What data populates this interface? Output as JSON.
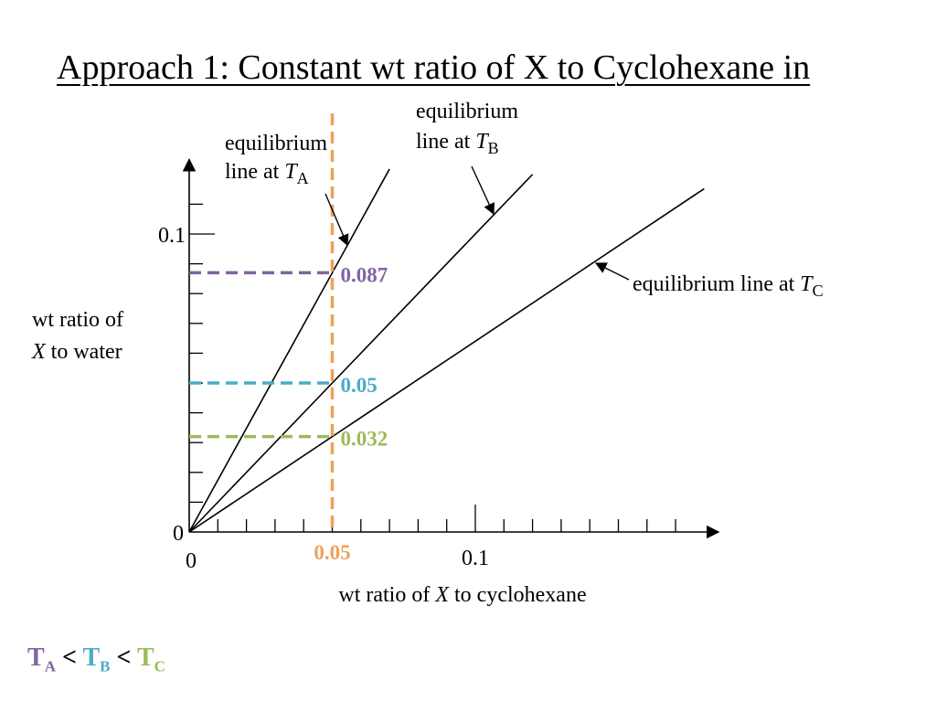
{
  "title": "Approach 1: Constant wt ratio of X to Cyclohexane in",
  "colors": {
    "axis": "#000000",
    "orange": "#f0a05a",
    "purple": "#8064a2",
    "teal": "#4bacc6",
    "green": "#9bbb59"
  },
  "chart_data": {
    "type": "line",
    "title": "",
    "xlabel": {
      "prefix": "wt ratio of ",
      "var": "X",
      "suffix": " to cyclohexane"
    },
    "ylabel": {
      "line1": "wt ratio of",
      "var": "X",
      "suffix": " to water"
    },
    "xlim": [
      0,
      0.185
    ],
    "ylim": [
      0,
      0.125
    ],
    "x_ticks": [
      "0",
      "0.1"
    ],
    "y_ticks": [
      "0",
      "0.1"
    ],
    "x_tick_step": 0.01,
    "y_tick_step": 0.01,
    "series": [
      {
        "name": "equilibrium line at TA",
        "temp": "A",
        "slope": 1.74,
        "x": [
          0,
          0.07
        ],
        "y": [
          0,
          0.1218
        ]
      },
      {
        "name": "equilibrium line at TB",
        "temp": "B",
        "slope": 1.0,
        "x": [
          0,
          0.12
        ],
        "y": [
          0,
          0.12
        ]
      },
      {
        "name": "equilibrium line at TC",
        "temp": "C",
        "slope": 0.64,
        "x": [
          0,
          0.18
        ],
        "y": [
          0,
          0.1152
        ]
      }
    ],
    "vertical_line": {
      "x": 0.05,
      "label": "0.05",
      "color": "#f0a05a"
    },
    "horizontal_lines": [
      {
        "y": 0.087,
        "label": "0.087",
        "color": "#8064a2"
      },
      {
        "y": 0.05,
        "label": "0.05",
        "color": "#4bacc6"
      },
      {
        "y": 0.032,
        "label": "0.032",
        "color": "#9bbb59"
      }
    ],
    "annotations": [
      {
        "line1": "equilibrium",
        "line2": "line at ",
        "var": "T",
        "sub": "A"
      },
      {
        "line1": "equilibrium",
        "line2": "line at ",
        "var": "T",
        "sub": "B"
      },
      {
        "line1": "equilibrium line at ",
        "var": "T",
        "sub": "C"
      }
    ]
  },
  "temperature_order": [
    {
      "letter": "T",
      "sub": "A",
      "color": "#8064a2"
    },
    {
      "letter": "T",
      "sub": "B",
      "color": "#4bacc6"
    },
    {
      "letter": "T",
      "sub": "C",
      "color": "#9bbb59"
    }
  ],
  "less_than": "<"
}
